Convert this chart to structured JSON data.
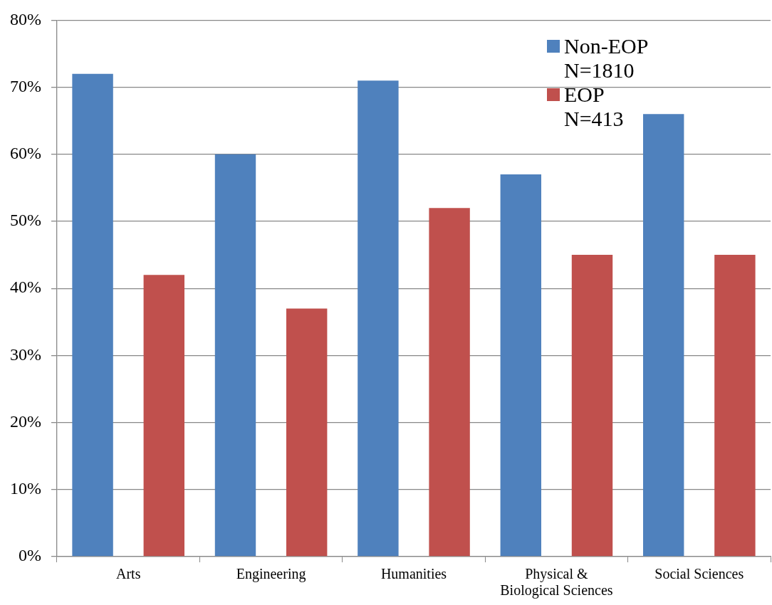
{
  "chart_data": {
    "type": "bar",
    "categories": [
      "Arts",
      "Engineering",
      "Humanities",
      "Physical &\nBiological Sciences",
      "Social Sciences"
    ],
    "series": [
      {
        "name": "Non-EOP\nN=1810",
        "color": "#4f81bd",
        "values": [
          72,
          60,
          71,
          57,
          66
        ]
      },
      {
        "name": "EOP\nN=413",
        "color": "#c0504d",
        "values": [
          42,
          37,
          52,
          45,
          45
        ]
      }
    ],
    "ylim": [
      0,
      80
    ],
    "yticks": [
      {
        "value": 0,
        "label": "0%"
      },
      {
        "value": 10,
        "label": "10%"
      },
      {
        "value": 20,
        "label": "20%"
      },
      {
        "value": 30,
        "label": "30%"
      },
      {
        "value": 40,
        "label": "40%"
      },
      {
        "value": 50,
        "label": "50%"
      },
      {
        "value": 60,
        "label": "60%"
      },
      {
        "value": 70,
        "label": "70%"
      },
      {
        "value": 80,
        "label": "80%"
      }
    ],
    "grid": "y",
    "legend": "top right"
  }
}
